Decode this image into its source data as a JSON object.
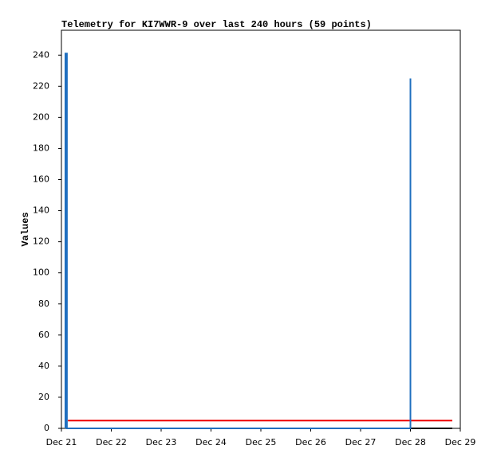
{
  "chart_data": {
    "type": "line",
    "title": "Telemetry for KI7WWR-9 over last 240 hours (59 points)",
    "y_label": "Values",
    "xlim": [
      21,
      29
    ],
    "xticks": [
      {
        "value": 21,
        "label": "Dec 21"
      },
      {
        "value": 22,
        "label": "Dec 22"
      },
      {
        "value": 23,
        "label": "Dec 23"
      },
      {
        "value": 24,
        "label": "Dec 24"
      },
      {
        "value": 25,
        "label": "Dec 25"
      },
      {
        "value": 26,
        "label": "Dec 26"
      },
      {
        "value": 27,
        "label": "Dec 27"
      },
      {
        "value": 28,
        "label": "Dec 28"
      },
      {
        "value": 29,
        "label": "Dec 29"
      }
    ],
    "ylim": [
      0,
      256
    ],
    "yticks": [
      0,
      20,
      40,
      60,
      80,
      100,
      120,
      140,
      160,
      180,
      200,
      220,
      240
    ],
    "series": [
      {
        "color": "#000000",
        "x": [
          21.13,
          28.84
        ],
        "values": [
          0,
          0
        ]
      },
      {
        "color": "#ee0000",
        "x": [
          21.13,
          28.84
        ],
        "values": [
          5,
          5
        ]
      },
      {
        "color": "#1f6fbf",
        "x": [
          21.08,
          21.08,
          21.11,
          21.11,
          28.0,
          28.0,
          28.0
        ],
        "values": [
          0,
          241,
          241,
          0,
          0,
          225,
          0
        ]
      }
    ]
  }
}
